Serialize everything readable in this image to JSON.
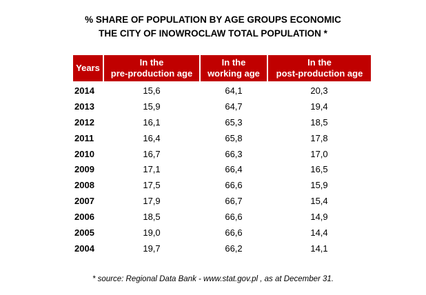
{
  "title_line1": "% SHARE OF POPULATION BY AGE GROUPS ECONOMIC",
  "title_line2": "THE CITY OF INOWROCLAW TOTAL POPULATION *",
  "columns": {
    "years": "Years",
    "pre_line1": "In the",
    "pre_line2": "pre-production age",
    "work_line1": "In the",
    "work_line2": "working age",
    "post_line1": "In the",
    "post_line2": "post-production age"
  },
  "rows": [
    {
      "year": "2014",
      "pre": "15,6",
      "work": "64,1",
      "post": "20,3"
    },
    {
      "year": "2013",
      "pre": "15,9",
      "work": "64,7",
      "post": "19,4"
    },
    {
      "year": "2012",
      "pre": "16,1",
      "work": "65,3",
      "post": "18,5"
    },
    {
      "year": "2011",
      "pre": "16,4",
      "work": "65,8",
      "post": "17,8"
    },
    {
      "year": "2010",
      "pre": "16,7",
      "work": "66,3",
      "post": "17,0"
    },
    {
      "year": "2009",
      "pre": "17,1",
      "work": "66,4",
      "post": "16,5"
    },
    {
      "year": "2008",
      "pre": "17,5",
      "work": "66,6",
      "post": "15,9"
    },
    {
      "year": "2007",
      "pre": "17,9",
      "work": "66,7",
      "post": "15,4"
    },
    {
      "year": "2006",
      "pre": "18,5",
      "work": "66,6",
      "post": "14,9"
    },
    {
      "year": "2005",
      "pre": "19,0",
      "work": "66,6",
      "post": "14,4"
    },
    {
      "year": "2004",
      "pre": "19,7",
      "work": "66,2",
      "post": "14,1"
    }
  ],
  "source": "* source: Regional Data Bank  - www.stat.gov.pl , as at December 31.",
  "colors": {
    "header_bg": "#c00000",
    "header_text": "#ffffff"
  }
}
